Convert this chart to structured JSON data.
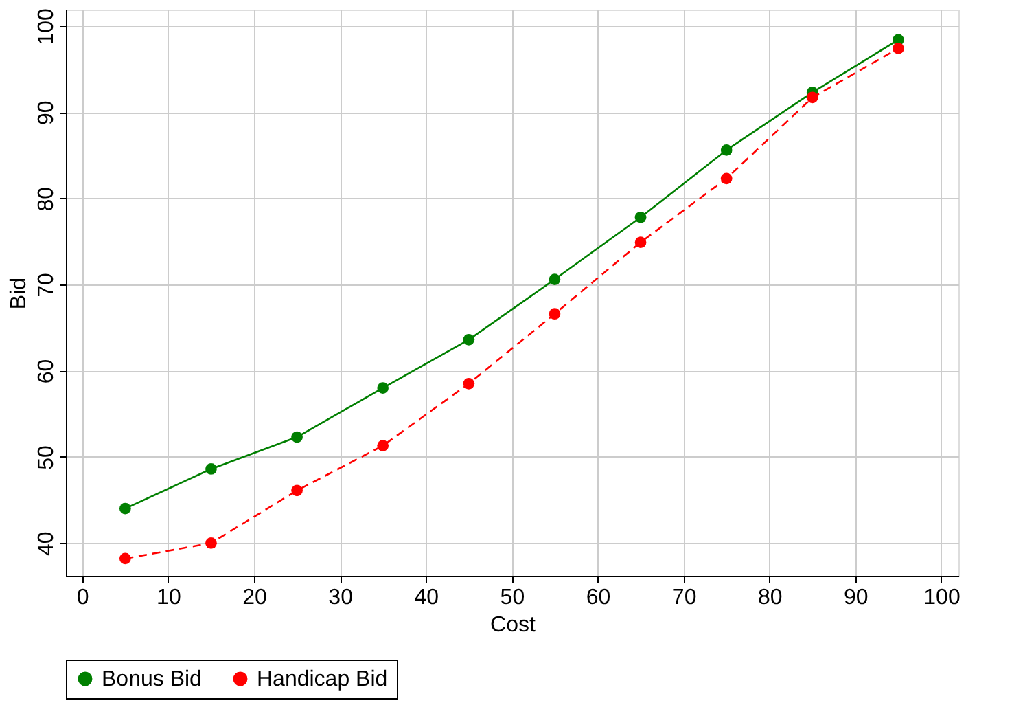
{
  "chart_data": {
    "type": "line",
    "xlabel": "Cost",
    "ylabel": "Bid",
    "x": [
      5,
      15,
      25,
      35,
      45,
      55,
      65,
      75,
      85,
      95
    ],
    "series": [
      {
        "name": "Bonus Bid",
        "color": "#007f00",
        "line_style": "solid",
        "values": [
          44.0,
          48.6,
          52.3,
          58.0,
          63.6,
          70.6,
          77.8,
          85.6,
          92.3,
          98.4
        ]
      },
      {
        "name": "Handicap Bid",
        "color": "#ff0000",
        "line_style": "dashed",
        "values": [
          38.2,
          40.0,
          46.1,
          51.3,
          58.5,
          66.6,
          74.9,
          82.3,
          91.7,
          97.4
        ]
      }
    ],
    "xlim": [
      -1.9,
      102
    ],
    "xticks": [
      0,
      10,
      20,
      30,
      40,
      50,
      60,
      70,
      80,
      90,
      100
    ],
    "ylim": [
      36.2,
      101.9
    ],
    "yticks": [
      40,
      50,
      60,
      70,
      80,
      90,
      100
    ],
    "grid": true,
    "legend": "bottom",
    "marker": "circle"
  }
}
